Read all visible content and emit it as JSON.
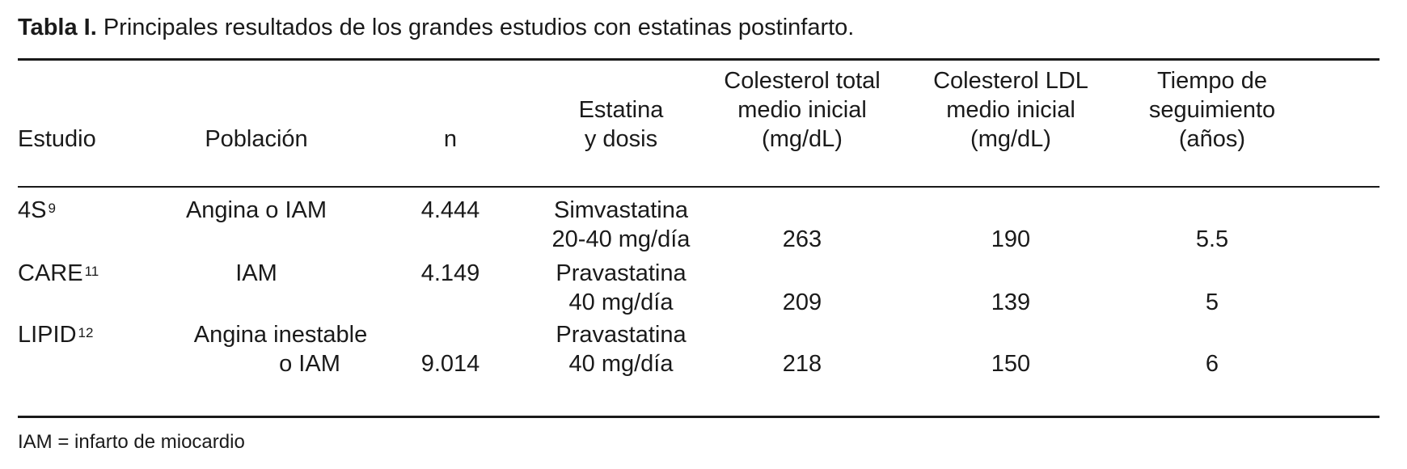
{
  "caption": {
    "label": "Tabla I.",
    "text": "Principales resultados de los grandes estudios con estatinas postinfarto."
  },
  "headers": {
    "estudio": "Estudio",
    "poblacion": "Población",
    "n": "n",
    "estatina": [
      "Estatina",
      "y dosis"
    ],
    "colesterol_total": [
      "Colesterol total",
      "medio inicial",
      "(mg/dL)"
    ],
    "colesterol_ldl": [
      "Colesterol LDL",
      "medio inicial",
      "(mg/dL)"
    ],
    "tiempo": [
      "Tiempo de",
      "seguimiento",
      "(años)"
    ]
  },
  "rows": [
    {
      "estudio": "4S",
      "ref": "9",
      "poblacion": [
        "Angina o IAM"
      ],
      "n": "4.444",
      "estatina": [
        "Simvastatina",
        "20-40 mg/día"
      ],
      "colesterol_total": "263",
      "colesterol_ldl": "190",
      "tiempo": "5.5"
    },
    {
      "estudio": "CARE",
      "ref": "11",
      "poblacion": [
        "IAM"
      ],
      "n": "4.149",
      "estatina": [
        "Pravastatina",
        "40 mg/día"
      ],
      "colesterol_total": "209",
      "colesterol_ldl": "139",
      "tiempo": "5"
    },
    {
      "estudio": "LIPID",
      "ref": "12",
      "poblacion": [
        "Angina inestable",
        "o IAM"
      ],
      "n": "9.014",
      "estatina": [
        "Pravastatina",
        "40 mg/día"
      ],
      "colesterol_total": "218",
      "colesterol_ldl": "150",
      "tiempo": "6"
    }
  ],
  "footnote": "IAM = infarto de miocardio"
}
